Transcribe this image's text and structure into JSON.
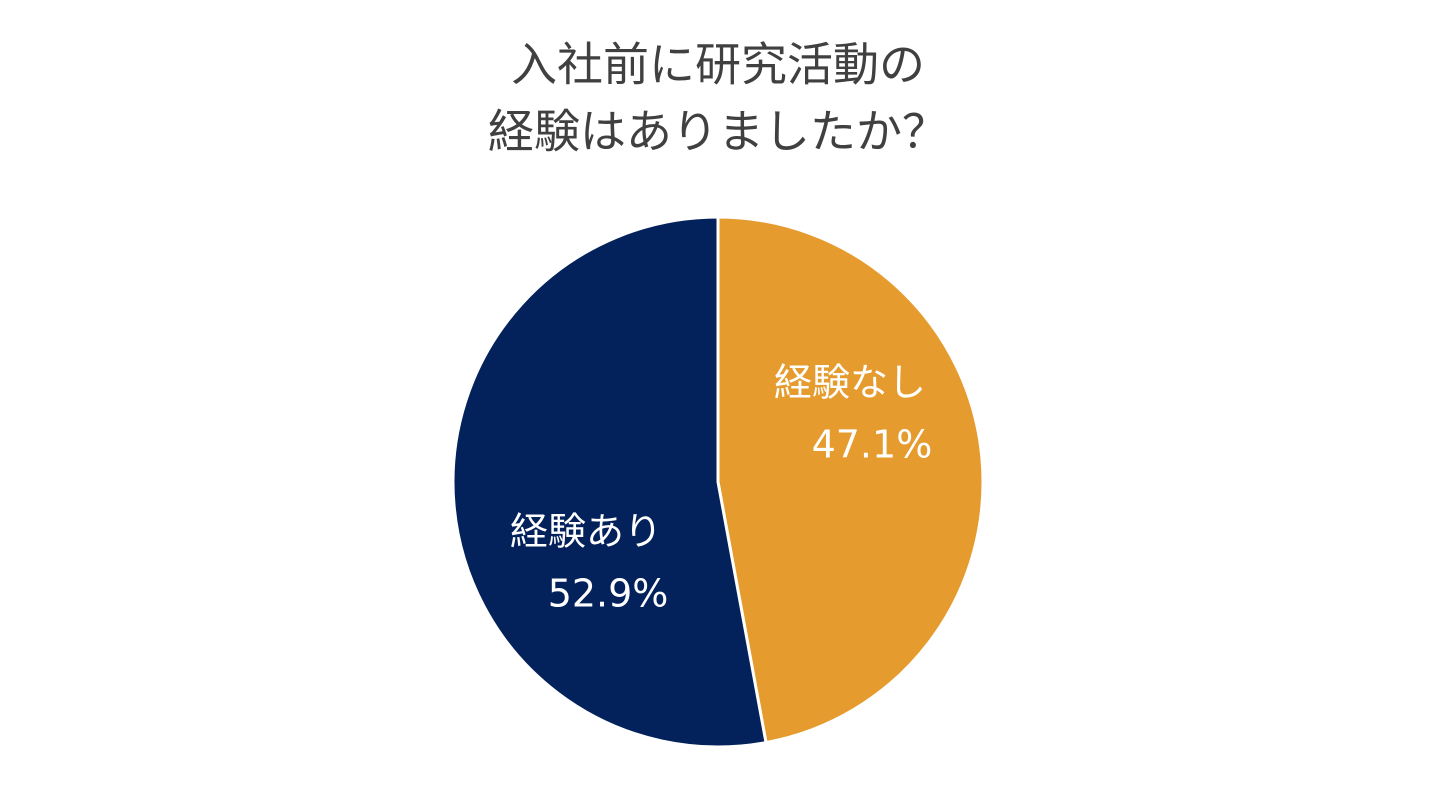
{
  "chart_data": {
    "type": "pie",
    "title": [
      "入社前に研究活動の",
      "経験はありましたか？"
    ],
    "categories": [
      "経験なし",
      "経験あり"
    ],
    "values": [
      47.1,
      52.9
    ],
    "value_labels": [
      "47.1%",
      "52.9%"
    ],
    "colors": [
      "#e69b2e",
      "#03215b"
    ]
  }
}
